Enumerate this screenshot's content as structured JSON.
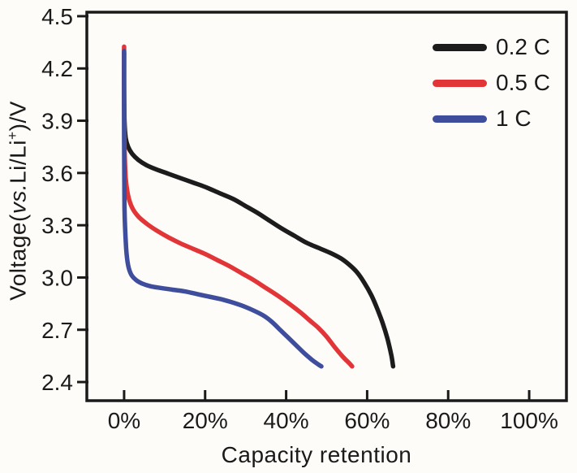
{
  "figure": {
    "background": "#fefcf9",
    "frame_color": "#1a1a1a",
    "tick_color": "#1a1a1a",
    "text_color": "#1a1a1a"
  },
  "chart_data": {
    "type": "line",
    "title": "",
    "xlabel": "Capacity retention",
    "ylabel": "Voltage(vs.Li/Li+)/V",
    "ylabel_parts": {
      "prefix": "Voltage(",
      "italic": "vs.",
      "mid": "Li/Li",
      "sup": "+",
      "suffix": ")/V"
    },
    "x_tick_labels": [
      "0%",
      "20%",
      "40%",
      "60%",
      "80%",
      "100%"
    ],
    "x_tick_values": [
      0,
      20,
      40,
      60,
      80,
      100
    ],
    "y_tick_labels": [
      "4.5",
      "4.2",
      "3.9",
      "3.6",
      "3.3",
      "3.0",
      "2.7",
      "2.4"
    ],
    "y_tick_values": [
      4.5,
      4.2,
      3.9,
      3.6,
      3.3,
      3.0,
      2.7,
      2.4
    ],
    "xlim": [
      -9.2,
      109.2
    ],
    "ylim": [
      2.293,
      4.523
    ],
    "grid": false,
    "legend_position": "top-right",
    "legend": [
      {
        "label": "0.2 C",
        "color": "#1c1c1c"
      },
      {
        "label": "0.5 C",
        "color": "#e13538"
      },
      {
        "label": "1 C",
        "color": "#3f4e9c"
      }
    ],
    "series": [
      {
        "name": "0.2 C",
        "color": "#1c1c1c",
        "x_unit": "percent_capacity_retention",
        "y_unit": "volts_vs_Li",
        "points": [
          [
            0,
            4.29
          ],
          [
            0,
            4.1
          ],
          [
            0.1,
            3.9
          ],
          [
            0.4,
            3.8
          ],
          [
            1,
            3.75
          ],
          [
            2,
            3.71
          ],
          [
            3.5,
            3.675
          ],
          [
            5.5,
            3.645
          ],
          [
            8,
            3.62
          ],
          [
            11,
            3.595
          ],
          [
            14,
            3.57
          ],
          [
            17,
            3.545
          ],
          [
            20,
            3.52
          ],
          [
            23.5,
            3.485
          ],
          [
            27,
            3.45
          ],
          [
            30,
            3.41
          ],
          [
            33,
            3.37
          ],
          [
            36,
            3.325
          ],
          [
            39,
            3.28
          ],
          [
            42,
            3.24
          ],
          [
            45,
            3.2
          ],
          [
            48,
            3.17
          ],
          [
            51,
            3.14
          ],
          [
            53.5,
            3.11
          ],
          [
            55.5,
            3.075
          ],
          [
            57.5,
            3.03
          ],
          [
            59.3,
            2.97
          ],
          [
            61,
            2.9
          ],
          [
            62.5,
            2.82
          ],
          [
            63.8,
            2.74
          ],
          [
            65,
            2.65
          ],
          [
            66,
            2.55
          ],
          [
            66.4,
            2.49
          ]
        ]
      },
      {
        "name": "0.5 C",
        "color": "#e13538",
        "x_unit": "percent_capacity_retention",
        "y_unit": "volts_vs_Li",
        "points": [
          [
            0,
            4.325
          ],
          [
            0,
            4.0
          ],
          [
            0.1,
            3.75
          ],
          [
            0.4,
            3.57
          ],
          [
            1,
            3.47
          ],
          [
            2,
            3.4
          ],
          [
            3.5,
            3.35
          ],
          [
            5.5,
            3.31
          ],
          [
            8,
            3.27
          ],
          [
            11,
            3.23
          ],
          [
            14,
            3.195
          ],
          [
            17,
            3.165
          ],
          [
            20,
            3.135
          ],
          [
            23,
            3.1
          ],
          [
            26,
            3.065
          ],
          [
            29,
            3.025
          ],
          [
            32,
            2.985
          ],
          [
            35,
            2.94
          ],
          [
            38,
            2.895
          ],
          [
            41,
            2.845
          ],
          [
            43.5,
            2.8
          ],
          [
            46,
            2.75
          ],
          [
            48,
            2.71
          ],
          [
            50,
            2.66
          ],
          [
            52,
            2.6
          ],
          [
            54,
            2.545
          ],
          [
            55.5,
            2.51
          ],
          [
            56.3,
            2.49
          ]
        ]
      },
      {
        "name": "1 C",
        "color": "#3f4e9c",
        "x_unit": "percent_capacity_retention",
        "y_unit": "volts_vs_Li",
        "points": [
          [
            0,
            4.3
          ],
          [
            0,
            3.8
          ],
          [
            0.1,
            3.4
          ],
          [
            0.5,
            3.17
          ],
          [
            1,
            3.07
          ],
          [
            1.8,
            3.015
          ],
          [
            3,
            2.985
          ],
          [
            4.5,
            2.965
          ],
          [
            6.5,
            2.95
          ],
          [
            9,
            2.94
          ],
          [
            12,
            2.93
          ],
          [
            15,
            2.92
          ],
          [
            18,
            2.905
          ],
          [
            21,
            2.89
          ],
          [
            24,
            2.875
          ],
          [
            27,
            2.855
          ],
          [
            29.5,
            2.835
          ],
          [
            32,
            2.81
          ],
          [
            34.5,
            2.78
          ],
          [
            36.5,
            2.745
          ],
          [
            38.5,
            2.7
          ],
          [
            40.5,
            2.655
          ],
          [
            42.5,
            2.61
          ],
          [
            44.5,
            2.565
          ],
          [
            46.5,
            2.525
          ],
          [
            48,
            2.5
          ],
          [
            48.7,
            2.49
          ]
        ]
      }
    ]
  }
}
